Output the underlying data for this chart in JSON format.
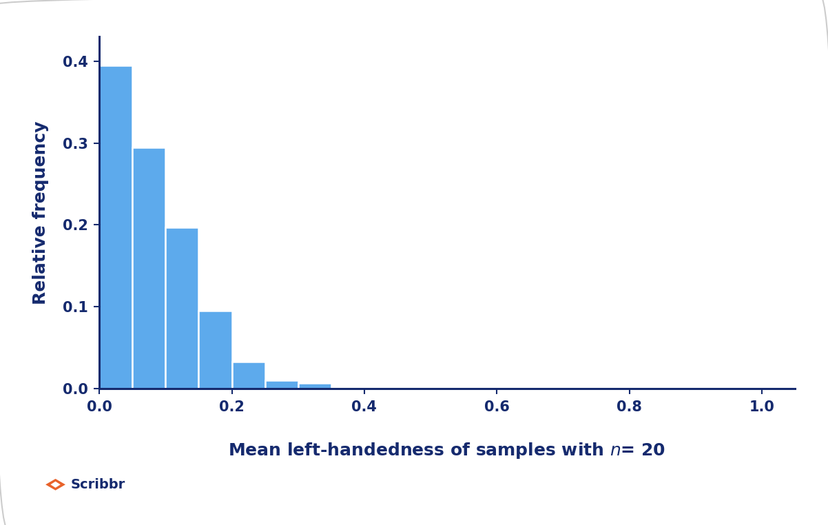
{
  "bar_lefts": [
    0.0,
    0.05,
    0.1,
    0.15,
    0.2,
    0.25,
    0.3
  ],
  "bar_heights": [
    0.395,
    0.295,
    0.197,
    0.095,
    0.033,
    0.01,
    0.007
  ],
  "bar_width": 0.05,
  "bar_color": "#5daaec",
  "bar_edgecolor": "#ffffff",
  "bar_linewidth": 1.8,
  "xlim": [
    0.0,
    1.05
  ],
  "ylim": [
    0.0,
    0.43
  ],
  "xticks": [
    0.0,
    0.2,
    0.4,
    0.6,
    0.8,
    1.0
  ],
  "yticks": [
    0.0,
    0.1,
    0.2,
    0.3,
    0.4
  ],
  "xlabel_plain": "Mean left-handedness of samples with ",
  "xlabel_italic": "n",
  "xlabel_suffix": "= 20",
  "ylabel": "Relative frequency",
  "axis_color": "#152A6E",
  "tick_label_color": "#152A6E",
  "label_color": "#152A6E",
  "background_color": "#ffffff",
  "tick_fontsize": 15,
  "label_fontsize": 18,
  "spine_linewidth": 2.2,
  "figure_bg": "#ffffff",
  "rounded_box_color": "#e8e8e8"
}
